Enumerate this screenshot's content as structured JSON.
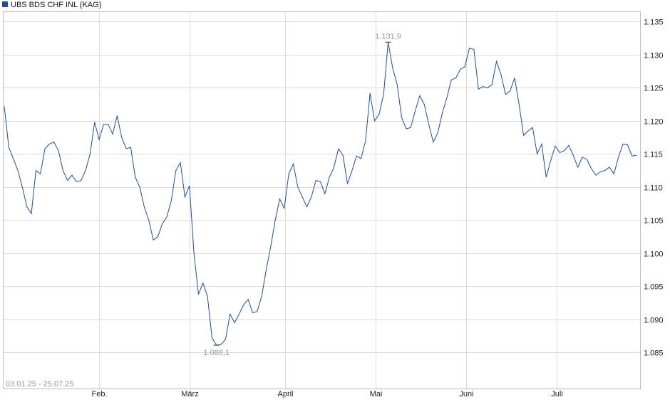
{
  "chart_data": {
    "type": "line",
    "title": "UBS BDS CHF INL (KAG)",
    "date_range": "03.01.25 - 25.07.25",
    "x_tick_labels": [
      "Feb.",
      "März",
      "April",
      "Mai",
      "Juni",
      "Juli"
    ],
    "y_tick_labels": [
      "1.085",
      "1.090",
      "1.095",
      "1.100",
      "1.105",
      "1.110",
      "1.115",
      "1.120",
      "1.125",
      "1.130",
      "1.135"
    ],
    "ylim": [
      1.0795,
      1.1365
    ],
    "grid": true,
    "line_color": "#1f4e96",
    "annotations": {
      "max_label": "1.131,9",
      "min_label": "1.086,1",
      "max_value": 1.1319,
      "min_value": 1.0861
    },
    "series": [
      {
        "values": [
          1.1222,
          1.116,
          1.1143,
          1.1125,
          1.11,
          1.107,
          1.106,
          1.1125,
          1.112,
          1.1158,
          1.1165,
          1.1168,
          1.1155,
          1.1125,
          1.111,
          1.1118,
          1.1108,
          1.111,
          1.1125,
          1.115,
          1.1198,
          1.1172,
          1.1195,
          1.1195,
          1.118,
          1.1208,
          1.1175,
          1.1158,
          1.116,
          1.1115,
          1.11,
          1.107,
          1.105,
          1.102,
          1.1025,
          1.1045,
          1.1055,
          1.108,
          1.1125,
          1.1137,
          1.1085,
          1.1102,
          1.1,
          1.0938,
          1.0955,
          1.0935,
          1.0872,
          1.0861,
          1.0862,
          1.087,
          1.0908,
          1.0895,
          1.0908,
          1.0922,
          1.093,
          1.091,
          1.0912,
          1.0935,
          1.0975,
          1.101,
          1.105,
          1.1082,
          1.1068,
          1.112,
          1.1135,
          1.11,
          1.1085,
          1.107,
          1.1085,
          1.111,
          1.1108,
          1.109,
          1.1115,
          1.113,
          1.1158,
          1.1148,
          1.1105,
          1.1125,
          1.1147,
          1.1143,
          1.117,
          1.1242,
          1.12,
          1.121,
          1.124,
          1.1319,
          1.128,
          1.1255,
          1.1205,
          1.1188,
          1.119,
          1.1215,
          1.1238,
          1.1225,
          1.1195,
          1.1168,
          1.1182,
          1.1212,
          1.1235,
          1.1262,
          1.1265,
          1.1278,
          1.1282,
          1.131,
          1.1308,
          1.1248,
          1.1252,
          1.125,
          1.1255,
          1.129,
          1.127,
          1.124,
          1.1245,
          1.1265,
          1.1225,
          1.1178,
          1.1185,
          1.119,
          1.115,
          1.1165,
          1.1115,
          1.114,
          1.1162,
          1.1152,
          1.1155,
          1.1163,
          1.1148,
          1.113,
          1.1145,
          1.1142,
          1.1128,
          1.1118,
          1.1123,
          1.1125,
          1.113,
          1.112,
          1.1145,
          1.1165,
          1.1164,
          1.1147,
          1.1148
        ]
      }
    ]
  }
}
